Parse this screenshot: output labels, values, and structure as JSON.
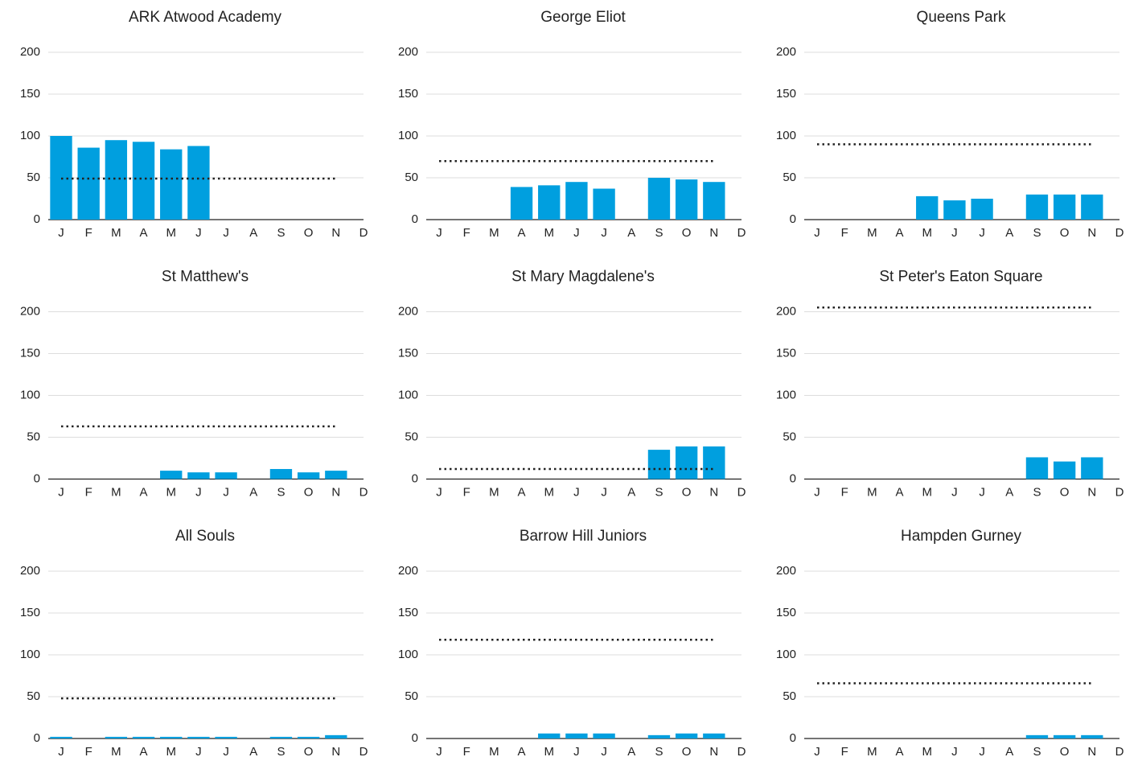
{
  "chart_data": [
    {
      "type": "bar",
      "title": "ARK Atwood Academy",
      "categories": [
        "J",
        "F",
        "M",
        "A",
        "M",
        "J",
        "J",
        "A",
        "S",
        "O",
        "N",
        "D"
      ],
      "values": [
        100,
        86,
        95,
        93,
        84,
        88,
        null,
        null,
        null,
        null,
        null,
        null
      ],
      "target": 49,
      "color": "#009fdf",
      "ylim": [
        0,
        210
      ],
      "yticks": [
        0,
        50,
        100,
        150,
        200
      ],
      "grid": true
    },
    {
      "type": "bar",
      "title": "George Eliot",
      "categories": [
        "J",
        "F",
        "M",
        "A",
        "M",
        "J",
        "J",
        "A",
        "S",
        "O",
        "N",
        "D"
      ],
      "values": [
        null,
        null,
        null,
        39,
        41,
        45,
        37,
        null,
        50,
        48,
        45,
        null
      ],
      "target": 70,
      "color": "#009fdf",
      "ylim": [
        0,
        210
      ],
      "yticks": [
        0,
        50,
        100,
        150,
        200
      ],
      "grid": true
    },
    {
      "type": "bar",
      "title": "Queens Park",
      "categories": [
        "J",
        "F",
        "M",
        "A",
        "M",
        "J",
        "J",
        "A",
        "S",
        "O",
        "N",
        "D"
      ],
      "values": [
        null,
        null,
        null,
        null,
        28,
        23,
        25,
        null,
        30,
        30,
        30,
        null
      ],
      "target": 90,
      "color": "#009fdf",
      "ylim": [
        0,
        210
      ],
      "yticks": [
        0,
        50,
        100,
        150,
        200
      ],
      "grid": true
    },
    {
      "type": "bar",
      "title": "St Matthew's",
      "categories": [
        "J",
        "F",
        "M",
        "A",
        "M",
        "J",
        "J",
        "A",
        "S",
        "O",
        "N",
        "D"
      ],
      "values": [
        null,
        null,
        null,
        null,
        10,
        8,
        8,
        null,
        12,
        8,
        10,
        null
      ],
      "target": 63,
      "color": "#009fdf",
      "ylim": [
        0,
        210
      ],
      "yticks": [
        0,
        50,
        100,
        150,
        200
      ],
      "grid": true
    },
    {
      "type": "bar",
      "title": "St Mary Magdalene's",
      "categories": [
        "J",
        "F",
        "M",
        "A",
        "M",
        "J",
        "J",
        "A",
        "S",
        "O",
        "N",
        "D"
      ],
      "values": [
        null,
        null,
        null,
        null,
        null,
        null,
        null,
        null,
        35,
        39,
        39,
        null
      ],
      "target": 12,
      "color": "#009fdf",
      "ylim": [
        0,
        210
      ],
      "yticks": [
        0,
        50,
        100,
        150,
        200
      ],
      "grid": true
    },
    {
      "type": "bar",
      "title": "St Peter's Eaton Square",
      "categories": [
        "J",
        "F",
        "M",
        "A",
        "M",
        "J",
        "J",
        "A",
        "S",
        "O",
        "N",
        "D"
      ],
      "values": [
        null,
        null,
        null,
        null,
        null,
        null,
        null,
        null,
        26,
        21,
        26,
        null
      ],
      "target": 205,
      "color": "#009fdf",
      "ylim": [
        0,
        210
      ],
      "yticks": [
        0,
        50,
        100,
        150,
        200
      ],
      "grid": true
    },
    {
      "type": "bar",
      "title": "All Souls",
      "categories": [
        "J",
        "F",
        "M",
        "A",
        "M",
        "J",
        "J",
        "A",
        "S",
        "O",
        "N",
        "D"
      ],
      "values": [
        2,
        null,
        2,
        2,
        2,
        2,
        2,
        null,
        2,
        2,
        4,
        null
      ],
      "target": 48,
      "color": "#009fdf",
      "ylim": [
        0,
        210
      ],
      "yticks": [
        0,
        50,
        100,
        150,
        200
      ],
      "grid": true
    },
    {
      "type": "bar",
      "title": "Barrow Hill Juniors",
      "categories": [
        "J",
        "F",
        "M",
        "A",
        "M",
        "J",
        "J",
        "A",
        "S",
        "O",
        "N",
        "D"
      ],
      "values": [
        null,
        null,
        null,
        null,
        6,
        6,
        6,
        null,
        4,
        6,
        6,
        null
      ],
      "target": 118,
      "color": "#009fdf",
      "ylim": [
        0,
        210
      ],
      "yticks": [
        0,
        50,
        100,
        150,
        200
      ],
      "grid": true
    },
    {
      "type": "bar",
      "title": "Hampden Gurney",
      "categories": [
        "J",
        "F",
        "M",
        "A",
        "M",
        "J",
        "J",
        "A",
        "S",
        "O",
        "N",
        "D"
      ],
      "values": [
        null,
        null,
        null,
        null,
        null,
        null,
        null,
        null,
        4,
        4,
        4,
        null
      ],
      "target": 66,
      "color": "#009fdf",
      "ylim": [
        0,
        210
      ],
      "yticks": [
        0,
        50,
        100,
        150,
        200
      ],
      "grid": true
    }
  ]
}
